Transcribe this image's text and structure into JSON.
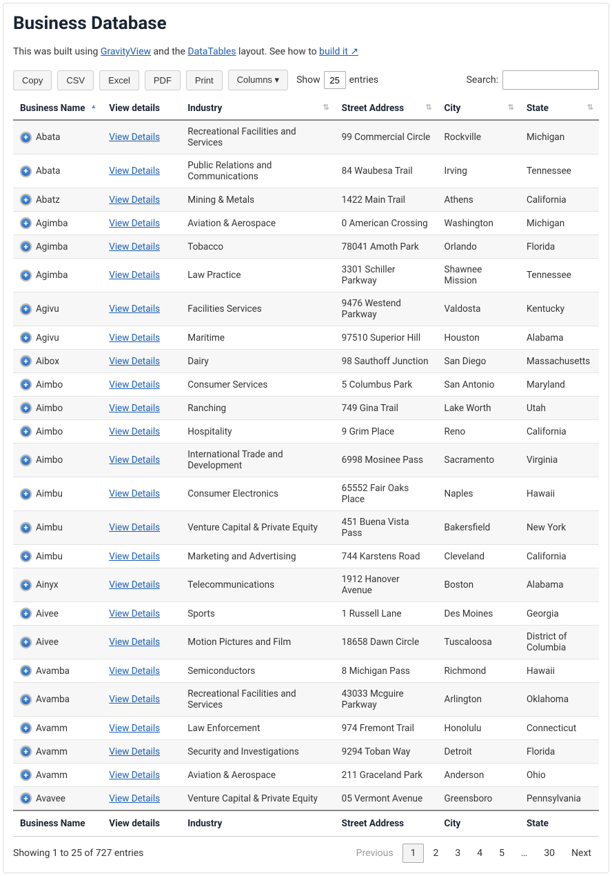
{
  "page": {
    "title": "Business Database",
    "intro_prefix": "This was built using ",
    "link_gravityview": "GravityView",
    "intro_mid1": " and the ",
    "link_datatables": "DataTables",
    "intro_mid2": " layout. See how to ",
    "link_build": "build it ↗"
  },
  "toolbar": {
    "copy": "Copy",
    "csv": "CSV",
    "excel": "Excel",
    "pdf": "PDF",
    "print": "Print",
    "columns": "Columns   ▾",
    "show_label": "Show",
    "entries_label": "entries",
    "entries_value": "25",
    "search_label": "Search:",
    "search_value": ""
  },
  "columns": {
    "name": "Business Name",
    "view": "View details",
    "industry": "Industry",
    "address": "Street Address",
    "city": "City",
    "state": "State"
  },
  "view_details_label": "View Details",
  "rows": [
    {
      "name": "Abata",
      "industry": "Recreational Facilities and Services",
      "address": "99 Commercial Circle",
      "city": "Rockville",
      "state": "Michigan"
    },
    {
      "name": "Abata",
      "industry": "Public Relations and Communications",
      "address": "84 Waubesa Trail",
      "city": "Irving",
      "state": "Tennessee"
    },
    {
      "name": "Abatz",
      "industry": "Mining & Metals",
      "address": "1422 Main Trail",
      "city": "Athens",
      "state": "California"
    },
    {
      "name": "Agimba",
      "industry": "Aviation & Aerospace",
      "address": "0 American Crossing",
      "city": "Washington",
      "state": "Michigan"
    },
    {
      "name": "Agimba",
      "industry": "Tobacco",
      "address": "78041 Amoth Park",
      "city": "Orlando",
      "state": "Florida"
    },
    {
      "name": "Agimba",
      "industry": "Law Practice",
      "address": "3301 Schiller Parkway",
      "city": "Shawnee Mission",
      "state": "Tennessee"
    },
    {
      "name": "Agivu",
      "industry": "Facilities Services",
      "address": "9476 Westend Parkway",
      "city": "Valdosta",
      "state": "Kentucky"
    },
    {
      "name": "Agivu",
      "industry": "Maritime",
      "address": "97510 Superior Hill",
      "city": "Houston",
      "state": "Alabama"
    },
    {
      "name": "Aibox",
      "industry": "Dairy",
      "address": "98 Sauthoff Junction",
      "city": "San Diego",
      "state": "Massachusetts"
    },
    {
      "name": "Aimbo",
      "industry": "Consumer Services",
      "address": "5 Columbus Park",
      "city": "San Antonio",
      "state": "Maryland"
    },
    {
      "name": "Aimbo",
      "industry": "Ranching",
      "address": "749 Gina Trail",
      "city": "Lake Worth",
      "state": "Utah"
    },
    {
      "name": "Aimbo",
      "industry": "Hospitality",
      "address": "9 Grim Place",
      "city": "Reno",
      "state": "California"
    },
    {
      "name": "Aimbo",
      "industry": "International Trade and Development",
      "address": "6998 Mosinee Pass",
      "city": "Sacramento",
      "state": "Virginia"
    },
    {
      "name": "Aimbu",
      "industry": "Consumer Electronics",
      "address": "65552 Fair Oaks Place",
      "city": "Naples",
      "state": "Hawaii"
    },
    {
      "name": "Aimbu",
      "industry": "Venture Capital & Private Equity",
      "address": "451 Buena Vista Pass",
      "city": "Bakersfield",
      "state": "New York"
    },
    {
      "name": "Aimbu",
      "industry": "Marketing and Advertising",
      "address": "744 Karstens Road",
      "city": "Cleveland",
      "state": "California"
    },
    {
      "name": "Ainyx",
      "industry": "Telecommunications",
      "address": "1912 Hanover Avenue",
      "city": "Boston",
      "state": "Alabama"
    },
    {
      "name": "Aivee",
      "industry": "Sports",
      "address": "1 Russell Lane",
      "city": "Des Moines",
      "state": "Georgia"
    },
    {
      "name": "Aivee",
      "industry": "Motion Pictures and Film",
      "address": "18658 Dawn Circle",
      "city": "Tuscaloosa",
      "state": "District of Columbia"
    },
    {
      "name": "Avamba",
      "industry": "Semiconductors",
      "address": "8 Michigan Pass",
      "city": "Richmond",
      "state": "Hawaii"
    },
    {
      "name": "Avamba",
      "industry": "Recreational Facilities and Services",
      "address": "43033 Mcguire Parkway",
      "city": "Arlington",
      "state": "Oklahoma"
    },
    {
      "name": "Avamm",
      "industry": "Law Enforcement",
      "address": "974 Fremont Trail",
      "city": "Honolulu",
      "state": "Connecticut"
    },
    {
      "name": "Avamm",
      "industry": "Security and Investigations",
      "address": "9294 Toban Way",
      "city": "Detroit",
      "state": "Florida"
    },
    {
      "name": "Avamm",
      "industry": "Aviation & Aerospace",
      "address": "211 Graceland Park",
      "city": "Anderson",
      "state": "Ohio"
    },
    {
      "name": "Avavee",
      "industry": "Venture Capital & Private Equity",
      "address": "05 Vermont Avenue",
      "city": "Greensboro",
      "state": "Pennsylvania"
    }
  ],
  "footer": {
    "info": "Showing 1 to 25 of 727 entries",
    "previous": "Previous",
    "next": "Next",
    "pages": [
      "1",
      "2",
      "3",
      "4",
      "5",
      "…",
      "30"
    ],
    "current_page": "1"
  },
  "colors": {
    "heading": "#1a2332",
    "link": "#1a5fb4",
    "row_alt": "#f7f7f7",
    "border": "#888",
    "btn_bg": "#f5f5f5",
    "expand_icon": "#2d6fc1"
  }
}
